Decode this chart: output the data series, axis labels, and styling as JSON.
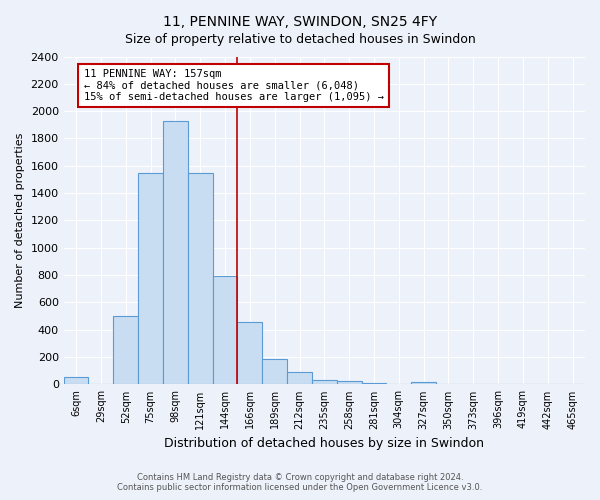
{
  "title": "11, PENNINE WAY, SWINDON, SN25 4FY",
  "subtitle": "Size of property relative to detached houses in Swindon",
  "xlabel": "Distribution of detached houses by size in Swindon",
  "ylabel": "Number of detached properties",
  "categories": [
    "6sqm",
    "29sqm",
    "52sqm",
    "75sqm",
    "98sqm",
    "121sqm",
    "144sqm",
    "166sqm",
    "189sqm",
    "212sqm",
    "235sqm",
    "258sqm",
    "281sqm",
    "304sqm",
    "327sqm",
    "350sqm",
    "373sqm",
    "396sqm",
    "419sqm",
    "442sqm",
    "465sqm"
  ],
  "values": [
    55,
    0,
    500,
    1550,
    1930,
    1550,
    790,
    460,
    185,
    90,
    35,
    28,
    10,
    0,
    20,
    0,
    0,
    0,
    0,
    0,
    0
  ],
  "bar_color": "#c8ddf2",
  "bar_edge_color": "#5b9bd5",
  "vline_color": "#c00000",
  "annotation_text": "11 PENNINE WAY: 157sqm\n← 84% of detached houses are smaller (6,048)\n15% of semi-detached houses are larger (1,095) →",
  "annotation_box_color": "white",
  "annotation_box_edge": "#c00000",
  "ylim": [
    0,
    2400
  ],
  "yticks": [
    0,
    200,
    400,
    600,
    800,
    1000,
    1200,
    1400,
    1600,
    1800,
    2000,
    2200,
    2400
  ],
  "footnote1": "Contains HM Land Registry data © Crown copyright and database right 2024.",
  "footnote2": "Contains public sector information licensed under the Open Government Licence v3.0.",
  "bg_color": "#edf2fa",
  "grid_color": "white"
}
